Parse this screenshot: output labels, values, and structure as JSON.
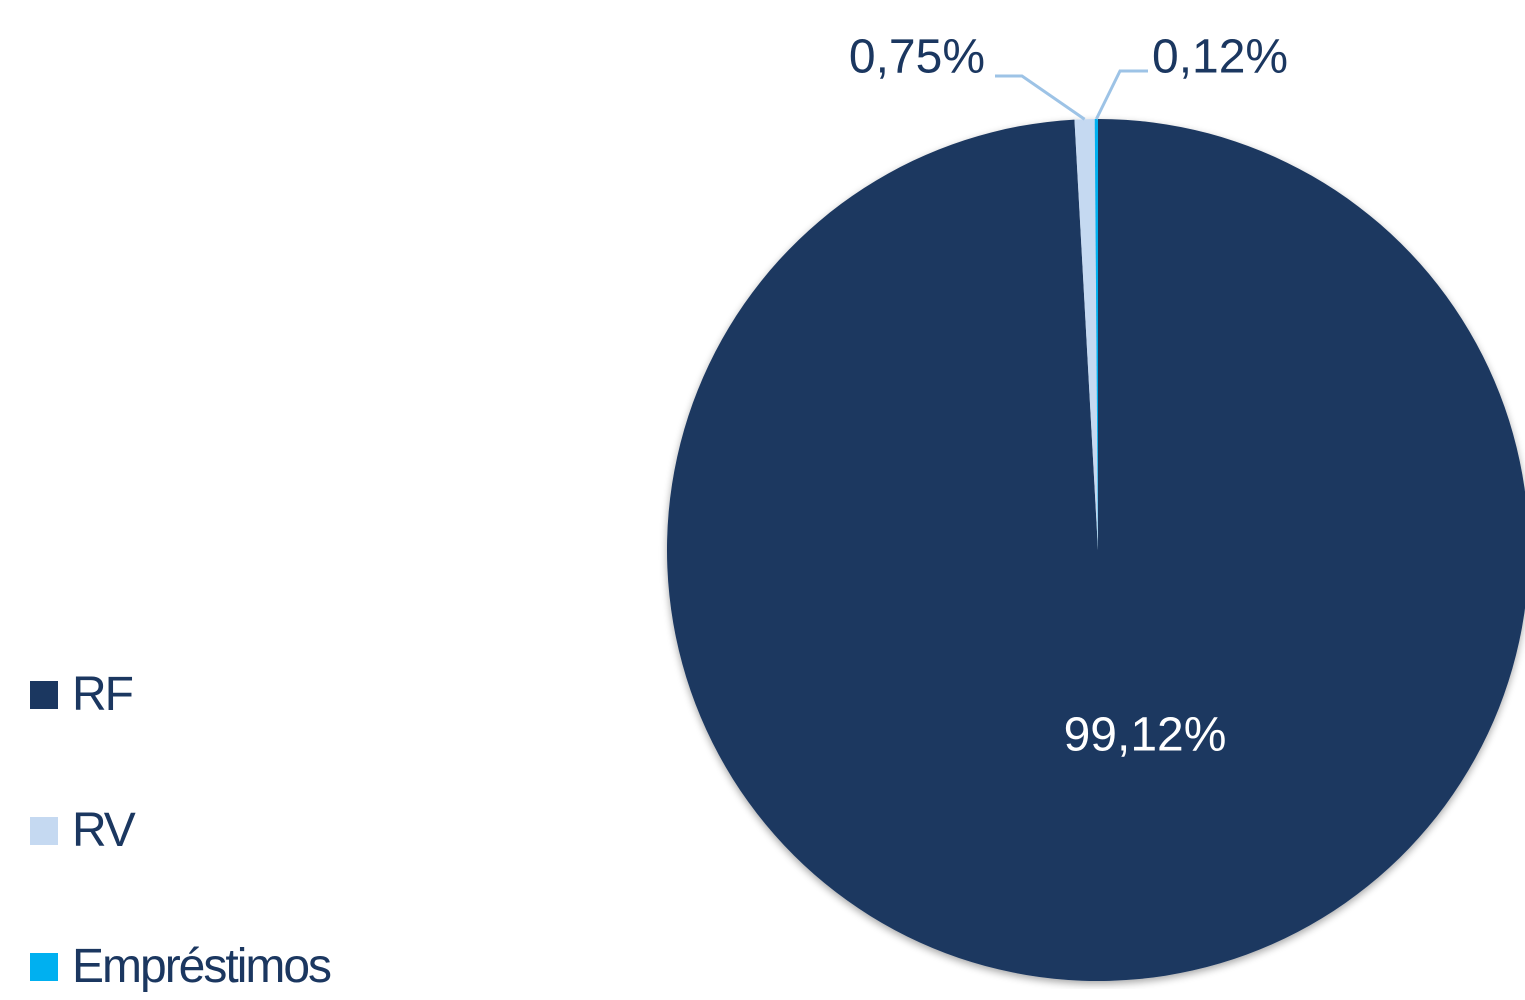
{
  "chart_data": {
    "type": "pie",
    "categories": [
      "RF",
      "RV",
      "Empréstimos"
    ],
    "values": [
      99.12,
      0.75,
      0.12
    ],
    "data_labels": [
      "99,12%",
      "0,75%",
      "0,12%"
    ],
    "colors": [
      "#1b3760",
      "#c5d9f1",
      "#00b0f0"
    ],
    "label_text_colors": [
      "#ffffff",
      "#1b3760",
      "#1b3760"
    ],
    "leader_line_color": "#9dc3e6",
    "start_angle_deg": 0,
    "direction": "clockwise",
    "legend_placement": "left-bottom"
  }
}
